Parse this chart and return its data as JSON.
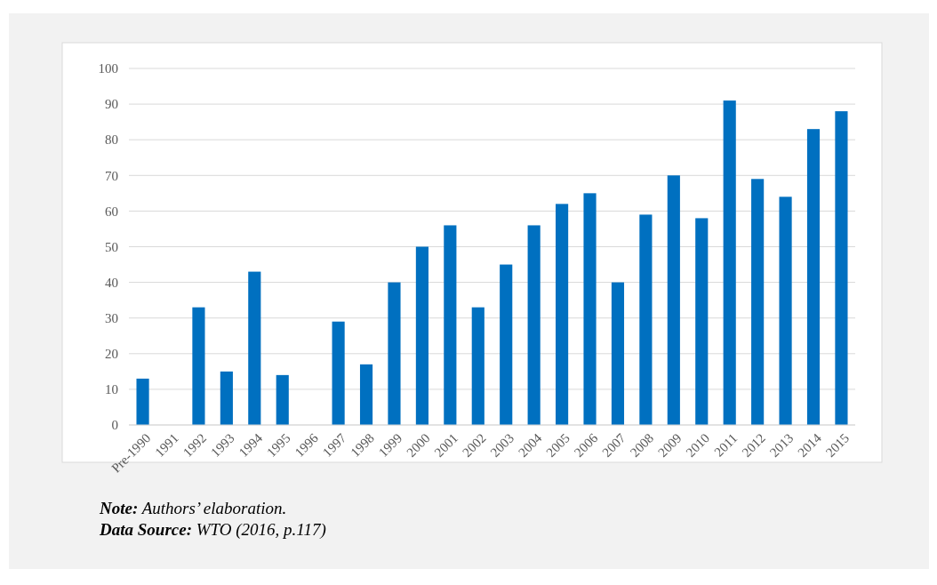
{
  "chart_data": {
    "type": "bar",
    "categories": [
      "Pre-1990",
      "1991",
      "1992",
      "1993",
      "1994",
      "1995",
      "1996",
      "1997",
      "1998",
      "1999",
      "2000",
      "2001",
      "2002",
      "2003",
      "2004",
      "2005",
      "2006",
      "2007",
      "2008",
      "2009",
      "2010",
      "2011",
      "2012",
      "2013",
      "2014",
      "2015"
    ],
    "values": [
      13,
      0,
      33,
      15,
      43,
      14,
      0,
      29,
      17,
      40,
      50,
      56,
      33,
      45,
      56,
      62,
      65,
      40,
      59,
      70,
      58,
      91,
      69,
      64,
      83,
      88
    ],
    "color": "#0070c0",
    "ylim": [
      0,
      100
    ],
    "yticks": [
      0,
      10,
      20,
      30,
      40,
      50,
      60,
      70,
      80,
      90,
      100
    ],
    "grid": "y",
    "annotations": [
      "Note: Authors’ elaboration.",
      "Data Source: WTO (2016, p.117)"
    ]
  }
}
